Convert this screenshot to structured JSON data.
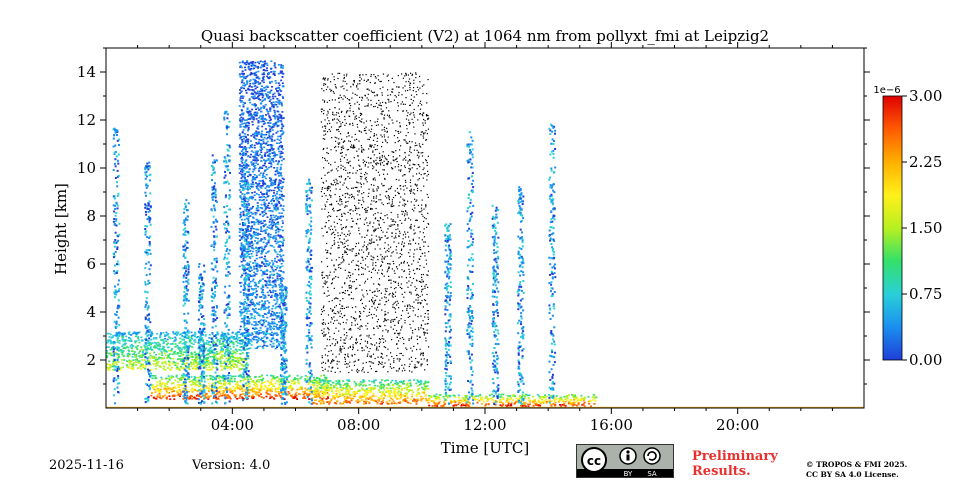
{
  "chart_data": {
    "type": "heatmap",
    "title": "Quasi backscatter coefficient (V2) at 1064 nm from pollyxt_fmi at Leipzig2",
    "xlabel": "Time [UTC]",
    "ylabel": "Height [km]",
    "xlim_hours": [
      0,
      24
    ],
    "ylim_km": [
      0,
      15
    ],
    "x_ticks": [
      {
        "hour": 4,
        "label": "04:00"
      },
      {
        "hour": 8,
        "label": "08:00"
      },
      {
        "hour": 12,
        "label": "12:00"
      },
      {
        "hour": 16,
        "label": "16:00"
      },
      {
        "hour": 20,
        "label": "20:00"
      }
    ],
    "y_ticks": [
      {
        "km": 2,
        "label": "2"
      },
      {
        "km": 4,
        "label": "4"
      },
      {
        "km": 6,
        "label": "6"
      },
      {
        "km": 8,
        "label": "8"
      },
      {
        "km": 10,
        "label": "10"
      },
      {
        "km": 12,
        "label": "12"
      },
      {
        "km": 14,
        "label": "14"
      }
    ],
    "colorbar": {
      "min": 0.0,
      "max": 3.0,
      "multiplier": "1e−6",
      "ticks": [
        {
          "value": 0.0,
          "label": "0.00"
        },
        {
          "value": 0.75,
          "label": "0.75"
        },
        {
          "value": 1.5,
          "label": "1.50"
        },
        {
          "value": 2.25,
          "label": "2.25"
        },
        {
          "value": 3.0,
          "label": "3.00"
        }
      ],
      "colors": [
        "#1f3fd8",
        "#1a8ff0",
        "#2ad0d8",
        "#33e06a",
        "#b8f020",
        "#fff01a",
        "#ffb000",
        "#ff5a00",
        "#e00000"
      ]
    },
    "features": [
      {
        "name": "aerosol-layer-morning",
        "t0": 0.0,
        "t1": 4.5,
        "h0": 1.6,
        "h1": 3.2,
        "value": 1.6
      },
      {
        "name": "cloud-low-morning",
        "t0": 1.4,
        "t1": 7.0,
        "h0": 0.4,
        "h1": 1.4,
        "value": 2.8
      },
      {
        "name": "boundary-layer-midday",
        "t0": 6.5,
        "t1": 10.2,
        "h0": 0.2,
        "h1": 1.2,
        "value": 2.6
      },
      {
        "name": "low-cloud-noon",
        "t0": 10.2,
        "t1": 15.5,
        "h0": 0.1,
        "h1": 0.6,
        "value": 2.9
      },
      {
        "name": "cirrus-column-0500",
        "t0": 4.2,
        "t1": 5.6,
        "h0": 2.5,
        "h1": 14.5,
        "value": 0.4
      },
      {
        "name": "noisy-dark-region",
        "t0": 6.8,
        "t1": 10.2,
        "h0": 1.5,
        "h1": 14.0,
        "value": 0.0
      }
    ]
  },
  "footer": {
    "date": "2025-11-16",
    "version": "Version: 4.0",
    "cc_label_cc": "cc",
    "cc_label_by": "BY",
    "cc_label_sa": "SA",
    "preliminary_line1": "Preliminary",
    "preliminary_line2": "Results.",
    "license_line1": "© TROPOS & FMI 2025.",
    "license_line2": "CC BY SA 4.0 License."
  }
}
